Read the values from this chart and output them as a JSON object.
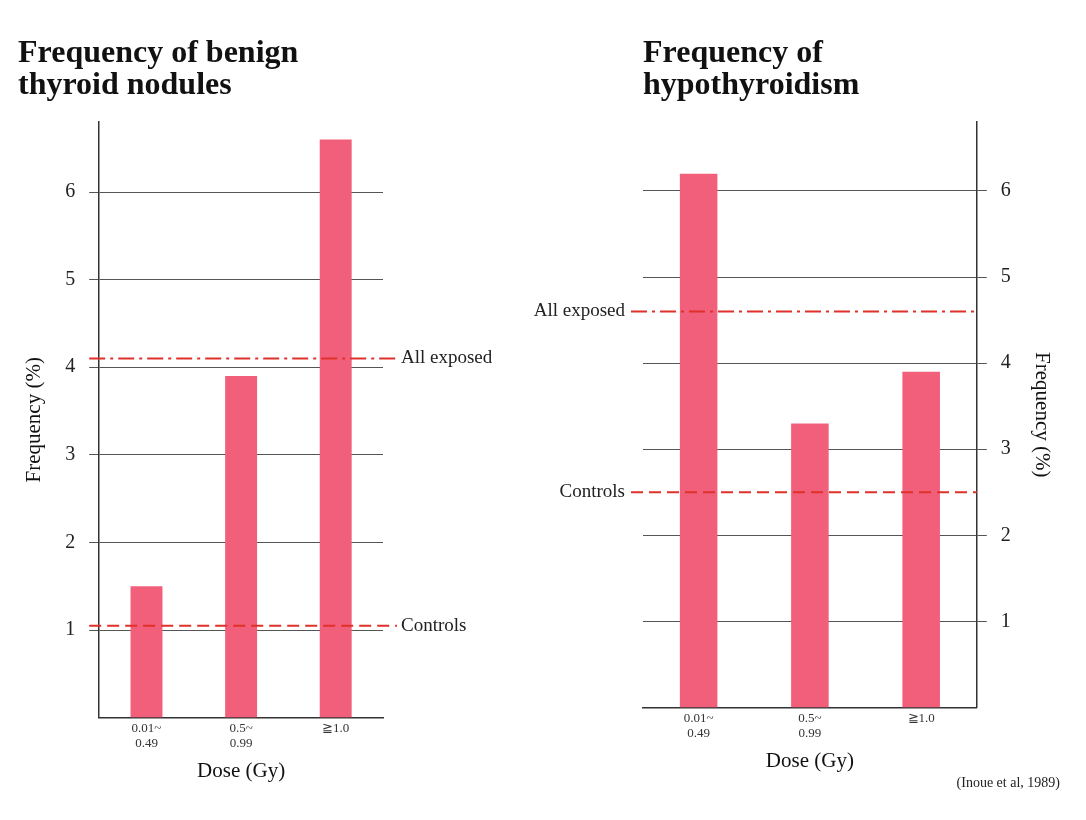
{
  "chart_data": [
    {
      "type": "bar",
      "title": "Frequency of benign thyroid nodules",
      "xlabel": "Dose (Gy)",
      "ylabel": "Frequency (%)",
      "categories": [
        "0.01~0.49",
        "0.5~0.99",
        "≧1.0"
      ],
      "values": [
        1.5,
        3.9,
        6.6
      ],
      "color": "#f25f7a",
      "ylim": [
        0,
        6.8
      ],
      "yticks": [
        1,
        2,
        3,
        4,
        5,
        6
      ],
      "grid": "y",
      "ref_lines": [
        {
          "axis": "y",
          "value": 4.1,
          "label": "All exposed",
          "color": "#e0302a",
          "line_style": "dashdot"
        },
        {
          "axis": "y",
          "value": 1.05,
          "label": "Controls",
          "color": "#e0302a",
          "line_style": "dashed"
        }
      ]
    },
    {
      "type": "bar",
      "title": "Frequency of hypothyroidism",
      "xlabel": "Dose (Gy)",
      "ylabel": "Frequency (%)",
      "categories": [
        "0.01~0.49",
        "0.5~0.99",
        "≧1.0"
      ],
      "values": [
        6.2,
        3.3,
        3.9
      ],
      "color": "#f25f7a",
      "ylim": [
        0,
        6.8
      ],
      "yticks": [
        1,
        2,
        3,
        4,
        5,
        6
      ],
      "grid": "y",
      "ref_lines": [
        {
          "axis": "y",
          "value": 4.6,
          "label": "All exposed",
          "color": "#e0302a",
          "line_style": "dashdot"
        },
        {
          "axis": "y",
          "value": 2.5,
          "label": "Controls",
          "color": "#e0302a",
          "line_style": "dashed"
        }
      ],
      "annotations": [
        "(Inoue et al, 1989)"
      ]
    }
  ]
}
